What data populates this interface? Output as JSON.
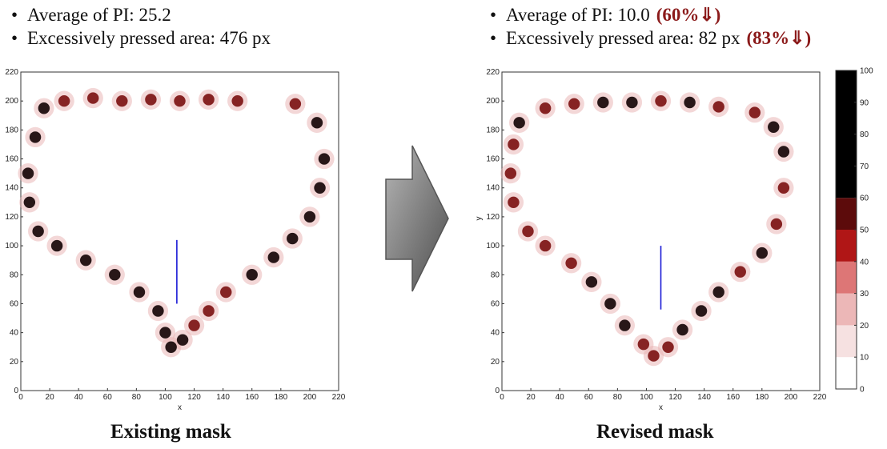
{
  "left_panel": {
    "bullets": [
      {
        "text": "Average of PI: 25.2",
        "change": ""
      },
      {
        "text": "Excessively pressed area: 476 px",
        "change": ""
      }
    ],
    "caption": "Existing mask"
  },
  "right_panel": {
    "bullets": [
      {
        "text": "Average of PI: 10.0",
        "change": "(60%⇓)"
      },
      {
        "text": "Excessively pressed area: 82 px",
        "change": "(83%⇓)"
      }
    ],
    "caption": "Revised mask"
  },
  "bullet_glyph": "•",
  "colors": {
    "highlight": "#c41e1e",
    "region": "#1a1ad6",
    "change_text": "#8b1a1a",
    "arrow": "#6a6a6a"
  },
  "chart_data": [
    {
      "type": "heatmap",
      "name": "Existing mask",
      "xlabel": "x",
      "ylabel": "",
      "xlim": [
        0,
        220
      ],
      "ylim": [
        220,
        0
      ],
      "xticks": [
        0,
        20,
        40,
        60,
        80,
        100,
        120,
        140,
        160,
        180,
        200,
        220
      ],
      "yticks": [
        0,
        20,
        40,
        60,
        80,
        100,
        120,
        140,
        160,
        180,
        200,
        220
      ],
      "highlight_box": [
        60,
        0,
        160,
        60
      ],
      "regions": [
        [
          30,
          60,
          190,
          104
        ],
        [
          0,
          104,
          60,
          204
        ],
        [
          60,
          104,
          162,
          220
        ],
        [
          162,
          104,
          220,
          204
        ],
        [
          60,
          174,
          162,
          220
        ]
      ],
      "region_dividers": [
        [
          [
            108,
            60
          ],
          [
            108,
            104
          ]
        ]
      ],
      "pressure_trace": [
        [
          16,
          195,
          1
        ],
        [
          10,
          175,
          1
        ],
        [
          5,
          150,
          1
        ],
        [
          6,
          130,
          1
        ],
        [
          12,
          110,
          1
        ],
        [
          25,
          100,
          0.9
        ],
        [
          45,
          90,
          0.9
        ],
        [
          65,
          80,
          1
        ],
        [
          82,
          68,
          1
        ],
        [
          95,
          55,
          1
        ],
        [
          100,
          40,
          1
        ],
        [
          104,
          30,
          1
        ],
        [
          112,
          35,
          1
        ],
        [
          120,
          45,
          0.8
        ],
        [
          130,
          55,
          0.8
        ],
        [
          142,
          68,
          0.7
        ],
        [
          160,
          80,
          0.9
        ],
        [
          175,
          92,
          0.9
        ],
        [
          188,
          105,
          1
        ],
        [
          200,
          120,
          1
        ],
        [
          207,
          140,
          0.9
        ],
        [
          210,
          160,
          1
        ],
        [
          205,
          185,
          1
        ],
        [
          190,
          198,
          0.8
        ],
        [
          30,
          200,
          0.7
        ],
        [
          50,
          202,
          0.6
        ],
        [
          70,
          200,
          0.7
        ],
        [
          90,
          201,
          0.7
        ],
        [
          110,
          200,
          0.6
        ],
        [
          130,
          201,
          0.7
        ],
        [
          150,
          200,
          0.7
        ]
      ]
    },
    {
      "type": "heatmap",
      "name": "Revised mask",
      "xlabel": "x",
      "ylabel": "y",
      "xlim": [
        0,
        220
      ],
      "ylim": [
        220,
        0
      ],
      "xticks": [
        0,
        20,
        40,
        60,
        80,
        100,
        120,
        140,
        160,
        180,
        200,
        220
      ],
      "yticks": [
        0,
        20,
        40,
        60,
        80,
        100,
        120,
        140,
        160,
        180,
        200,
        220
      ],
      "highlight_box": [
        60,
        0,
        160,
        56
      ],
      "regions": [
        [
          30,
          56,
          190,
          100
        ],
        [
          0,
          100,
          50,
          200
        ],
        [
          50,
          100,
          170,
          220
        ],
        [
          170,
          100,
          220,
          200
        ],
        [
          50,
          175,
          170,
          220
        ]
      ],
      "region_dividers": [
        [
          [
            110,
            56
          ],
          [
            110,
            100
          ]
        ]
      ],
      "pressure_trace": [
        [
          12,
          185,
          1
        ],
        [
          8,
          170,
          0.8
        ],
        [
          6,
          150,
          0.7
        ],
        [
          8,
          130,
          0.7
        ],
        [
          18,
          110,
          0.8
        ],
        [
          30,
          100,
          0.7
        ],
        [
          48,
          88,
          0.8
        ],
        [
          62,
          75,
          0.9
        ],
        [
          75,
          60,
          1
        ],
        [
          85,
          45,
          1
        ],
        [
          98,
          32,
          0.8
        ],
        [
          105,
          24,
          0.8
        ],
        [
          115,
          30,
          0.8
        ],
        [
          125,
          42,
          1
        ],
        [
          138,
          55,
          1
        ],
        [
          150,
          68,
          0.9
        ],
        [
          165,
          82,
          0.8
        ],
        [
          180,
          95,
          0.9
        ],
        [
          190,
          115,
          0.8
        ],
        [
          195,
          140,
          0.8
        ],
        [
          195,
          165,
          0.9
        ],
        [
          188,
          182,
          0.9
        ],
        [
          175,
          192,
          0.8
        ],
        [
          30,
          195,
          0.8
        ],
        [
          50,
          198,
          0.8
        ],
        [
          70,
          199,
          0.9
        ],
        [
          90,
          199,
          0.9
        ],
        [
          110,
          200,
          0.8
        ],
        [
          130,
          199,
          0.9
        ],
        [
          150,
          196,
          0.8
        ]
      ]
    }
  ],
  "colorbar": {
    "min": 0,
    "max": 100,
    "ticks": [
      0,
      10,
      20,
      30,
      40,
      50,
      60,
      70,
      80,
      90,
      100
    ],
    "bands": [
      {
        "from": 0,
        "to": 10,
        "color": "#ffffff"
      },
      {
        "from": 10,
        "to": 20,
        "color": "#f6e1e1"
      },
      {
        "from": 20,
        "to": 30,
        "color": "#ecb7b7"
      },
      {
        "from": 30,
        "to": 40,
        "color": "#dd7676"
      },
      {
        "from": 40,
        "to": 50,
        "color": "#b01616"
      },
      {
        "from": 50,
        "to": 60,
        "color": "#5c0b0b"
      },
      {
        "from": 60,
        "to": 100,
        "color": "#000000"
      }
    ]
  }
}
